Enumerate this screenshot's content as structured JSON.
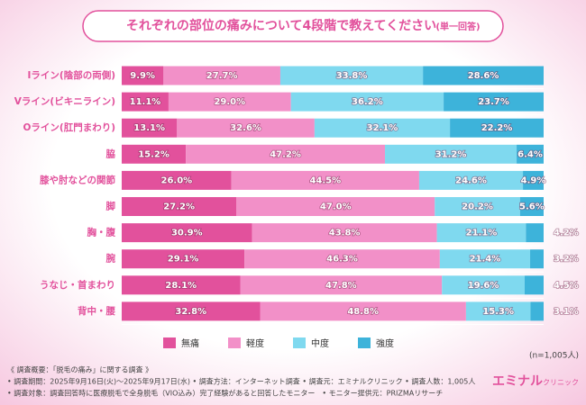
{
  "chart_data": {
    "type": "stacked-bar-horizontal",
    "title": "それぞれの部位の痛みについて4段階で教えてください",
    "subtitle": "(単一回答)",
    "categories": [
      "Iライン(陰部の両側)",
      "Vライン(ビキニライン)",
      "Oライン(肛門まわり)",
      "脇",
      "膝や肘などの関節",
      "脚",
      "胸・腹",
      "腕",
      "うなじ・首まわり",
      "背中・腰"
    ],
    "xlim": [
      0,
      100
    ],
    "series": [
      {
        "name": "無痛",
        "color": "#e2519c",
        "values": [
          9.9,
          11.1,
          13.1,
          15.2,
          26.0,
          27.2,
          30.9,
          29.1,
          28.1,
          32.8
        ],
        "value_labels": [
          "9.9%",
          "11.1%",
          "13.1%",
          "15.2%",
          "26.0%",
          "27.2%",
          "30.9%",
          "29.1%",
          "28.1%",
          "32.8%"
        ]
      },
      {
        "name": "軽度",
        "color": "#f290c8",
        "values": [
          27.7,
          29.0,
          32.6,
          47.2,
          44.5,
          47.0,
          43.8,
          46.3,
          47.8,
          48.8
        ],
        "value_labels": [
          "27.7%",
          "29.0%",
          "32.6%",
          "47.2%",
          "44.5%",
          "47.0%",
          "43.8%",
          "46.3%",
          "47.8%",
          "48.8%"
        ]
      },
      {
        "name": "中度",
        "color": "#7fd9ef",
        "values": [
          33.8,
          36.2,
          32.1,
          31.2,
          24.6,
          20.2,
          21.1,
          21.4,
          19.6,
          15.3
        ],
        "value_labels": [
          "33.8%",
          "36.2%",
          "32.1%",
          "31.2%",
          "24.6%",
          "20.2%",
          "21.1%",
          "21.4%",
          "19.6%",
          "15.3%"
        ]
      },
      {
        "name": "強度",
        "color": "#3db3da",
        "values": [
          28.6,
          23.7,
          22.2,
          6.4,
          4.9,
          5.6,
          4.2,
          3.2,
          4.5,
          3.1
        ],
        "value_labels": [
          "28.6%",
          "23.7%",
          "22.2%",
          "6.4%",
          "4.9%",
          "5.6%",
          "4.2%",
          "3.2%",
          "4.5%",
          "3.1%"
        ]
      }
    ],
    "sample_size": "(n=1,005人)",
    "notes": [
      "《 調査概要：「脱毛の痛み」に関する調査 》",
      "• 調査期間：2025年9月16日(火)～2025年9月17日(水) • 調査方法：インターネット調査 • 調査元：エミナルクリニック • 調査人数：1,005人",
      "• 調査対象：調査回答時に医療脱毛で全身脱毛（VIO込み）完了経験があると回答したモニター　• モニター提供元：PRIZMAリサーチ"
    ]
  },
  "brand": {
    "name": "エミナル",
    "sub": "クリニック"
  }
}
